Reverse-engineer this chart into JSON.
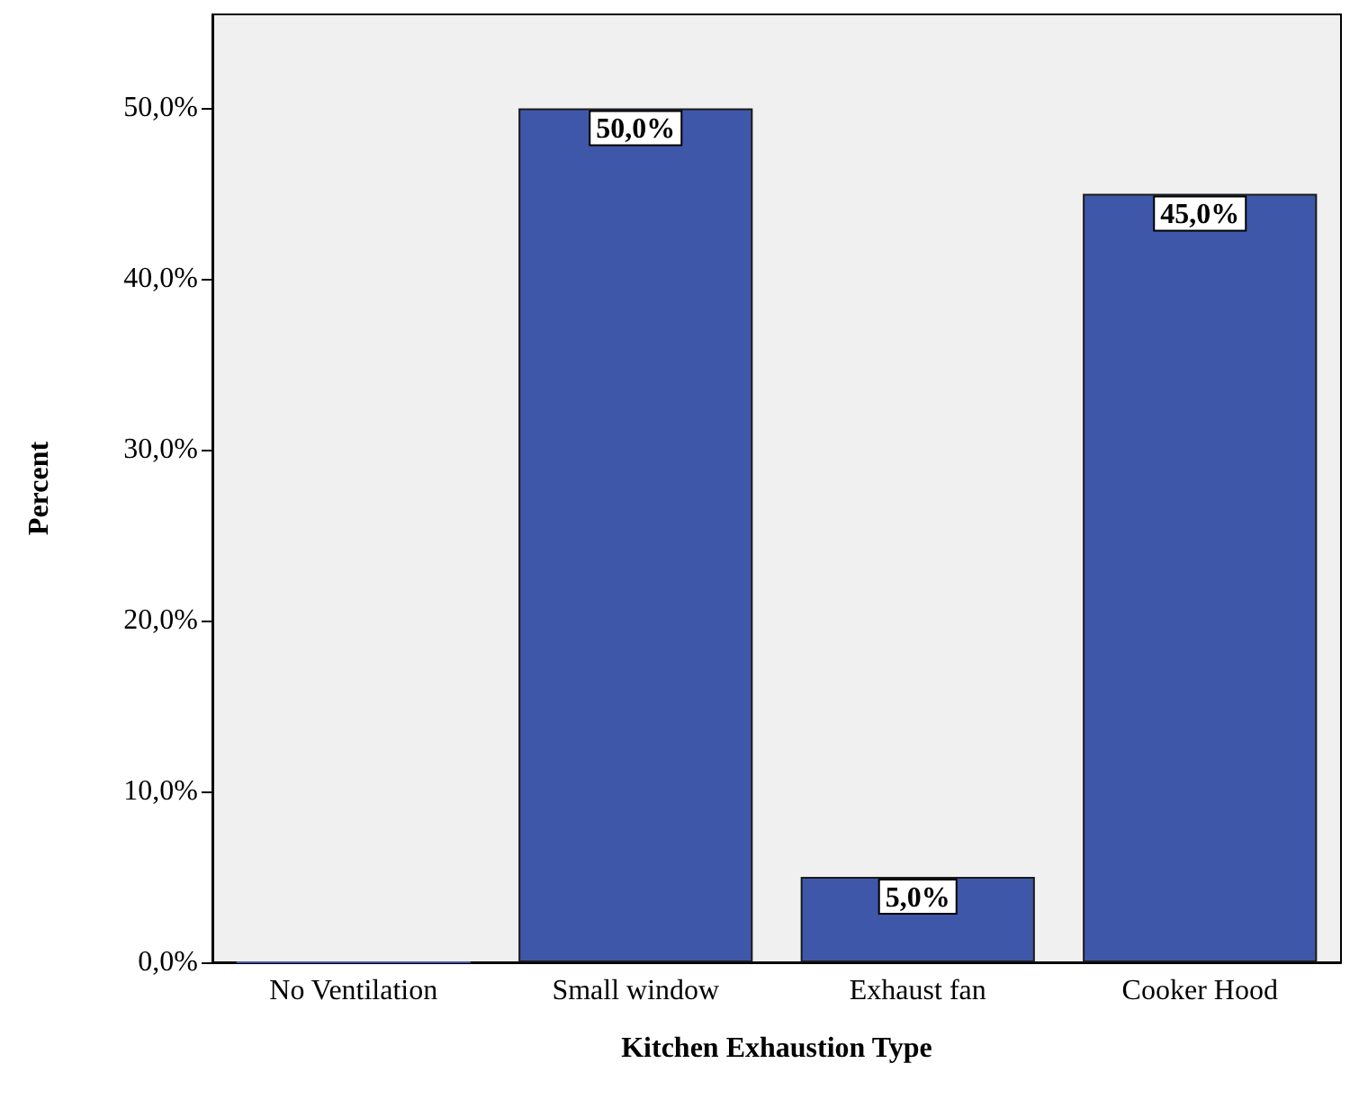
{
  "chart_data": {
    "type": "bar",
    "xlabel": "Kitchen Exhaustion Type",
    "ylabel": "Percent",
    "categories": [
      "No Ventilation",
      "Small window",
      "Exhaust fan",
      "Cooker Hood"
    ],
    "values": [
      0,
      50,
      5,
      45
    ],
    "value_labels": [
      null,
      "50,0%",
      "5,0%",
      "45,0%"
    ],
    "color": "#3f57a8",
    "ylim": [
      0,
      55.5
    ],
    "yticks": [
      {
        "value": 0,
        "label": "0,0%"
      },
      {
        "value": 10,
        "label": "10,0%"
      },
      {
        "value": 20,
        "label": "20,0%"
      },
      {
        "value": 30,
        "label": "30,0%"
      },
      {
        "value": 40,
        "label": "40,0%"
      },
      {
        "value": 50,
        "label": "50,0%"
      }
    ],
    "grid": false
  }
}
